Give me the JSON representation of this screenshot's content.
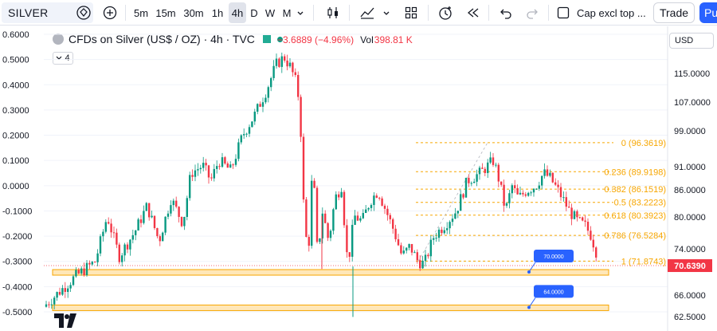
{
  "toolbar": {
    "symbol": "SILVER",
    "timeframes": [
      "5m",
      "15m",
      "30m",
      "1h",
      "4h",
      "D",
      "W",
      "M"
    ],
    "active_timeframe": "4h",
    "indicator_label": "Cap excl top ...",
    "trade_label": "Trade",
    "publish_label": "Pu",
    "icons": [
      "diamond-icon",
      "plus-circle-icon",
      "candles-icon",
      "indicators-icon",
      "chevron-down-icon",
      "layout-grid-icon",
      "alert-clock-icon",
      "replay-icon",
      "undo-icon",
      "redo-icon",
      "checkbox-icon"
    ]
  },
  "legend": {
    "title": "CFDs on Silver (US$ / OZ) · 4h · TVC",
    "change": "−3.6889 (−4.96%)",
    "volume_label": "Vol",
    "volume_value": "398.81 K",
    "collapse_count": "4"
  },
  "currency": "USD",
  "colors": {
    "up": "#089981",
    "down": "#f23645",
    "fib": "#f7a600",
    "zone_fill": "#ffe7b8",
    "zone_border": "#f7a600",
    "label_bg": "#2962ff",
    "price_tag": "#f23645"
  },
  "chart_data": {
    "type": "candlestick",
    "left_axis": {
      "ticks": [
        "0.6000",
        "0.5000",
        "0.4000",
        "0.3000",
        "0.2000",
        "0.1000",
        "0.0000",
        "-0.1000",
        "-0.2000",
        "-0.3000",
        "-0.4000",
        "-0.5000"
      ],
      "range": [
        -0.55,
        0.6
      ]
    },
    "right_axis": {
      "ticks": [
        "115.0000",
        "107.0000",
        "99.0000",
        "91.0000",
        "86.0000",
        "80.0000",
        "74.0000",
        "66.0000",
        "62.5000"
      ]
    },
    "current_price": "70.6390",
    "fib_levels": [
      {
        "label": "0 (96.3619)",
        "value": 96.3619
      },
      {
        "label": "0.236 (89.9198)",
        "value": 89.9198
      },
      {
        "label": "0.382 (86.1519)",
        "value": 86.1519
      },
      {
        "label": "0.5 (83.2223)",
        "value": 83.2223
      },
      {
        "label": "0.618 (80.3923)",
        "value": 80.3923
      },
      {
        "label": "0.786 (76.5284)",
        "value": 76.5284
      },
      {
        "label": "1 (71.8743)",
        "value": 71.8743
      }
    ],
    "zones": [
      {
        "label": "70.0000",
        "value": 70.0
      },
      {
        "label": "64.0000",
        "value": 64.0
      }
    ],
    "path": [
      [
        0,
        -0.48
      ],
      [
        20,
        -0.42
      ],
      [
        40,
        -0.36
      ],
      [
        65,
        -0.3
      ],
      [
        80,
        -0.12
      ],
      [
        95,
        -0.28
      ],
      [
        115,
        -0.18
      ],
      [
        130,
        -0.08
      ],
      [
        145,
        -0.22
      ],
      [
        160,
        -0.05
      ],
      [
        175,
        -0.15
      ],
      [
        185,
        0.05
      ],
      [
        200,
        0.08
      ],
      [
        210,
        0.02
      ],
      [
        220,
        0.1
      ],
      [
        235,
        0.06
      ],
      [
        250,
        0.2
      ],
      [
        265,
        0.28
      ],
      [
        280,
        0.38
      ],
      [
        292,
        0.48
      ],
      [
        302,
        0.51
      ],
      [
        310,
        0.47
      ],
      [
        318,
        0.4
      ],
      [
        322,
        0.3
      ],
      [
        326,
        -0.05
      ],
      [
        332,
        -0.3
      ],
      [
        338,
        0.1
      ],
      [
        344,
        -0.28
      ],
      [
        350,
        -0.1
      ],
      [
        358,
        -0.22
      ],
      [
        366,
        -0.05
      ],
      [
        374,
        0.0
      ],
      [
        382,
        -0.32
      ],
      [
        390,
        -0.12
      ],
      [
        400,
        -0.14
      ],
      [
        410,
        -0.06
      ],
      [
        420,
        -0.02
      ],
      [
        430,
        -0.1
      ],
      [
        440,
        -0.18
      ],
      [
        450,
        -0.28
      ],
      [
        460,
        -0.24
      ],
      [
        470,
        -0.3
      ],
      [
        478,
        -0.31
      ],
      [
        490,
        -0.2
      ],
      [
        505,
        -0.15
      ],
      [
        518,
        -0.1
      ],
      [
        532,
        0.02
      ],
      [
        548,
        0.05
      ],
      [
        558,
        0.08
      ],
      [
        565,
        0.1
      ],
      [
        572,
        0.02
      ],
      [
        580,
        -0.1
      ],
      [
        588,
        0.0
      ],
      [
        596,
        -0.05
      ],
      [
        606,
        -0.02
      ],
      [
        618,
        0.0
      ],
      [
        628,
        0.05
      ],
      [
        636,
        0.03
      ],
      [
        648,
        -0.03
      ],
      [
        660,
        -0.1
      ],
      [
        670,
        -0.14
      ],
      [
        680,
        -0.16
      ],
      [
        688,
        -0.2
      ],
      [
        693,
        -0.26
      ]
    ]
  }
}
